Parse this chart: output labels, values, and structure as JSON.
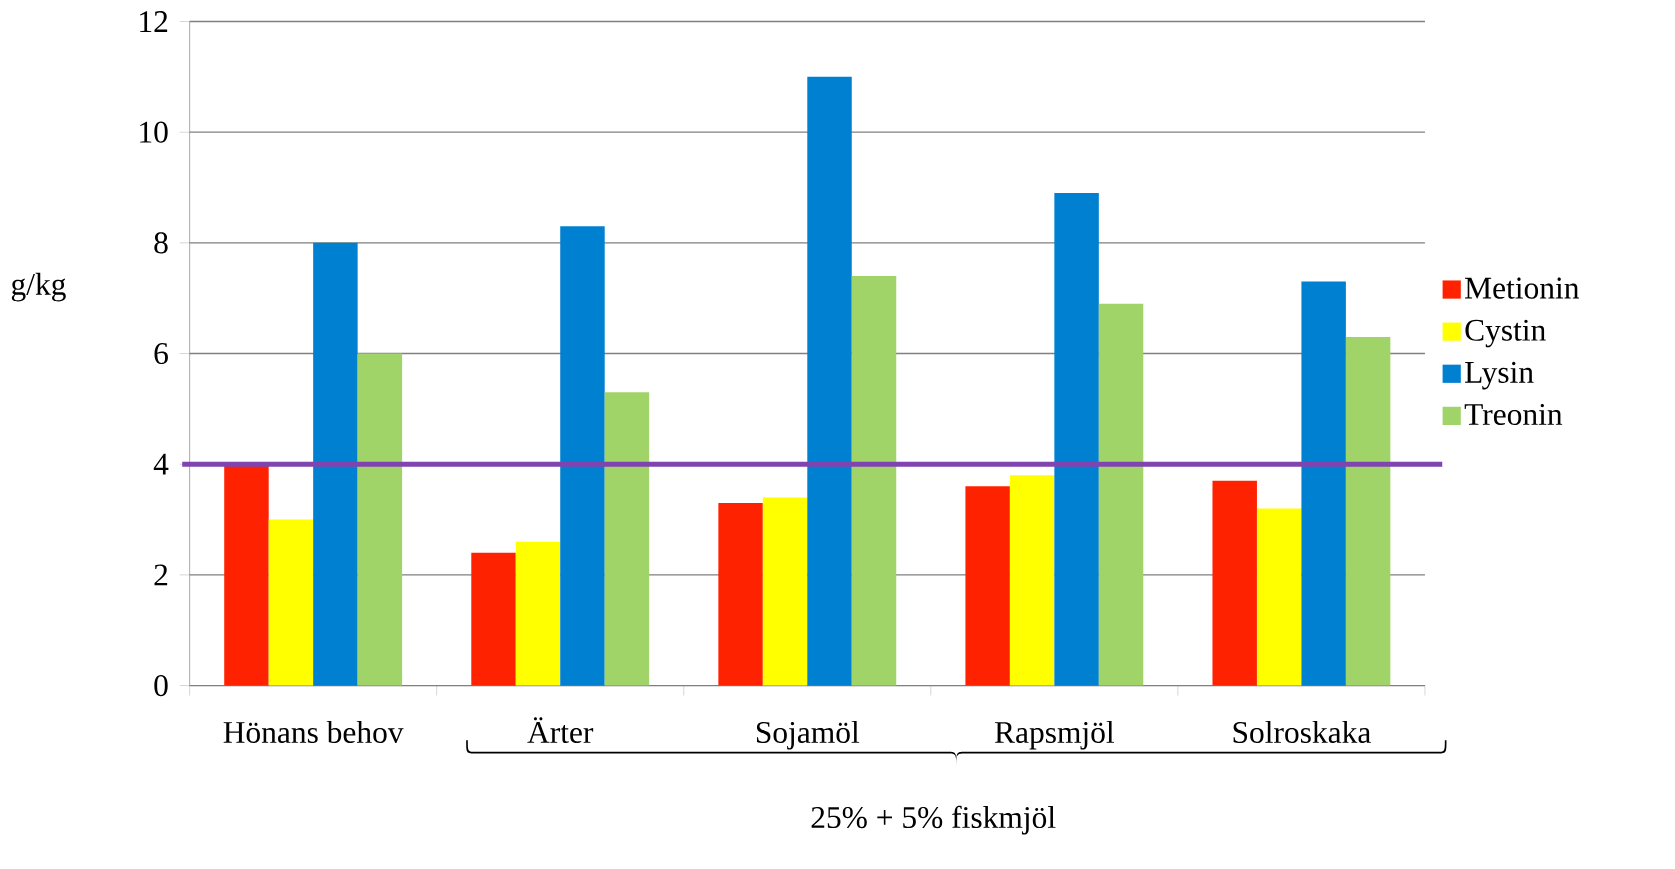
{
  "chart_data": {
    "type": "bar",
    "ylabel": "g/kg",
    "categories": [
      "Hönans behov",
      "Ärter",
      "Sojamöl",
      "Rapsmjöl",
      "Solroskaka"
    ],
    "series": [
      {
        "name": "Metionin",
        "color": "#ff2200",
        "values": [
          4.0,
          2.4,
          3.3,
          3.6,
          3.7
        ]
      },
      {
        "name": "Cystin",
        "color": "#ffff00",
        "values": [
          3.0,
          2.6,
          3.4,
          3.8,
          3.2
        ]
      },
      {
        "name": "Lysin",
        "color": "#0080d0",
        "values": [
          8.0,
          8.3,
          11.0,
          8.9,
          7.3
        ]
      },
      {
        "name": "Treonin",
        "color": "#a0d468",
        "values": [
          6.0,
          5.3,
          7.4,
          6.9,
          6.3
        ]
      }
    ],
    "ylim": [
      0,
      12
    ],
    "yticks": [
      0,
      2,
      4,
      6,
      8,
      10,
      12
    ],
    "grid": "y",
    "legend": "right",
    "ref_lines": [
      {
        "axis": "y",
        "value": 4,
        "color": "#7f44b0"
      }
    ],
    "annotations": [
      "25% + 5% fiskmjöl"
    ]
  }
}
